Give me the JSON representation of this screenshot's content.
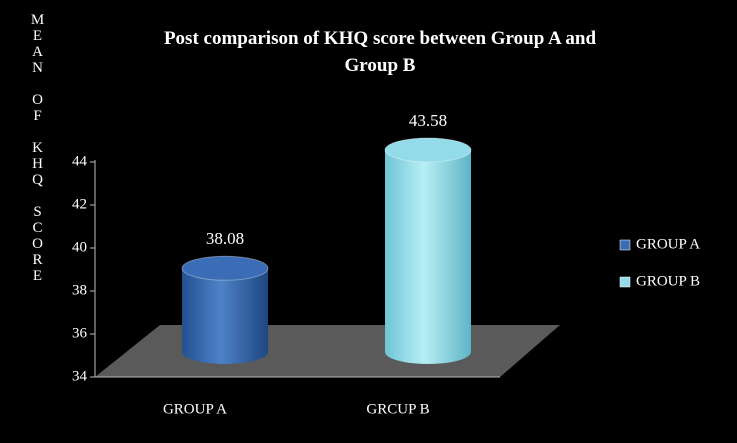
{
  "chart_data": {
    "type": "bar",
    "title": "Post comparison of KHQ score between Group A and Group B",
    "y_label": "MEAN OF KHQ SCORE",
    "categories": [
      "GROUP A",
      "GRCUP B"
    ],
    "series": [
      {
        "name": "GROUP A",
        "color": "#3a6db5",
        "values": [
          38.08,
          null
        ]
      },
      {
        "name": "GROUP B",
        "color": "#93dbe8",
        "values": [
          null,
          43.58
        ]
      }
    ],
    "ylim": [
      34,
      44
    ],
    "yticks": [
      34,
      36,
      38,
      40,
      42,
      44
    ],
    "legend": "right"
  }
}
